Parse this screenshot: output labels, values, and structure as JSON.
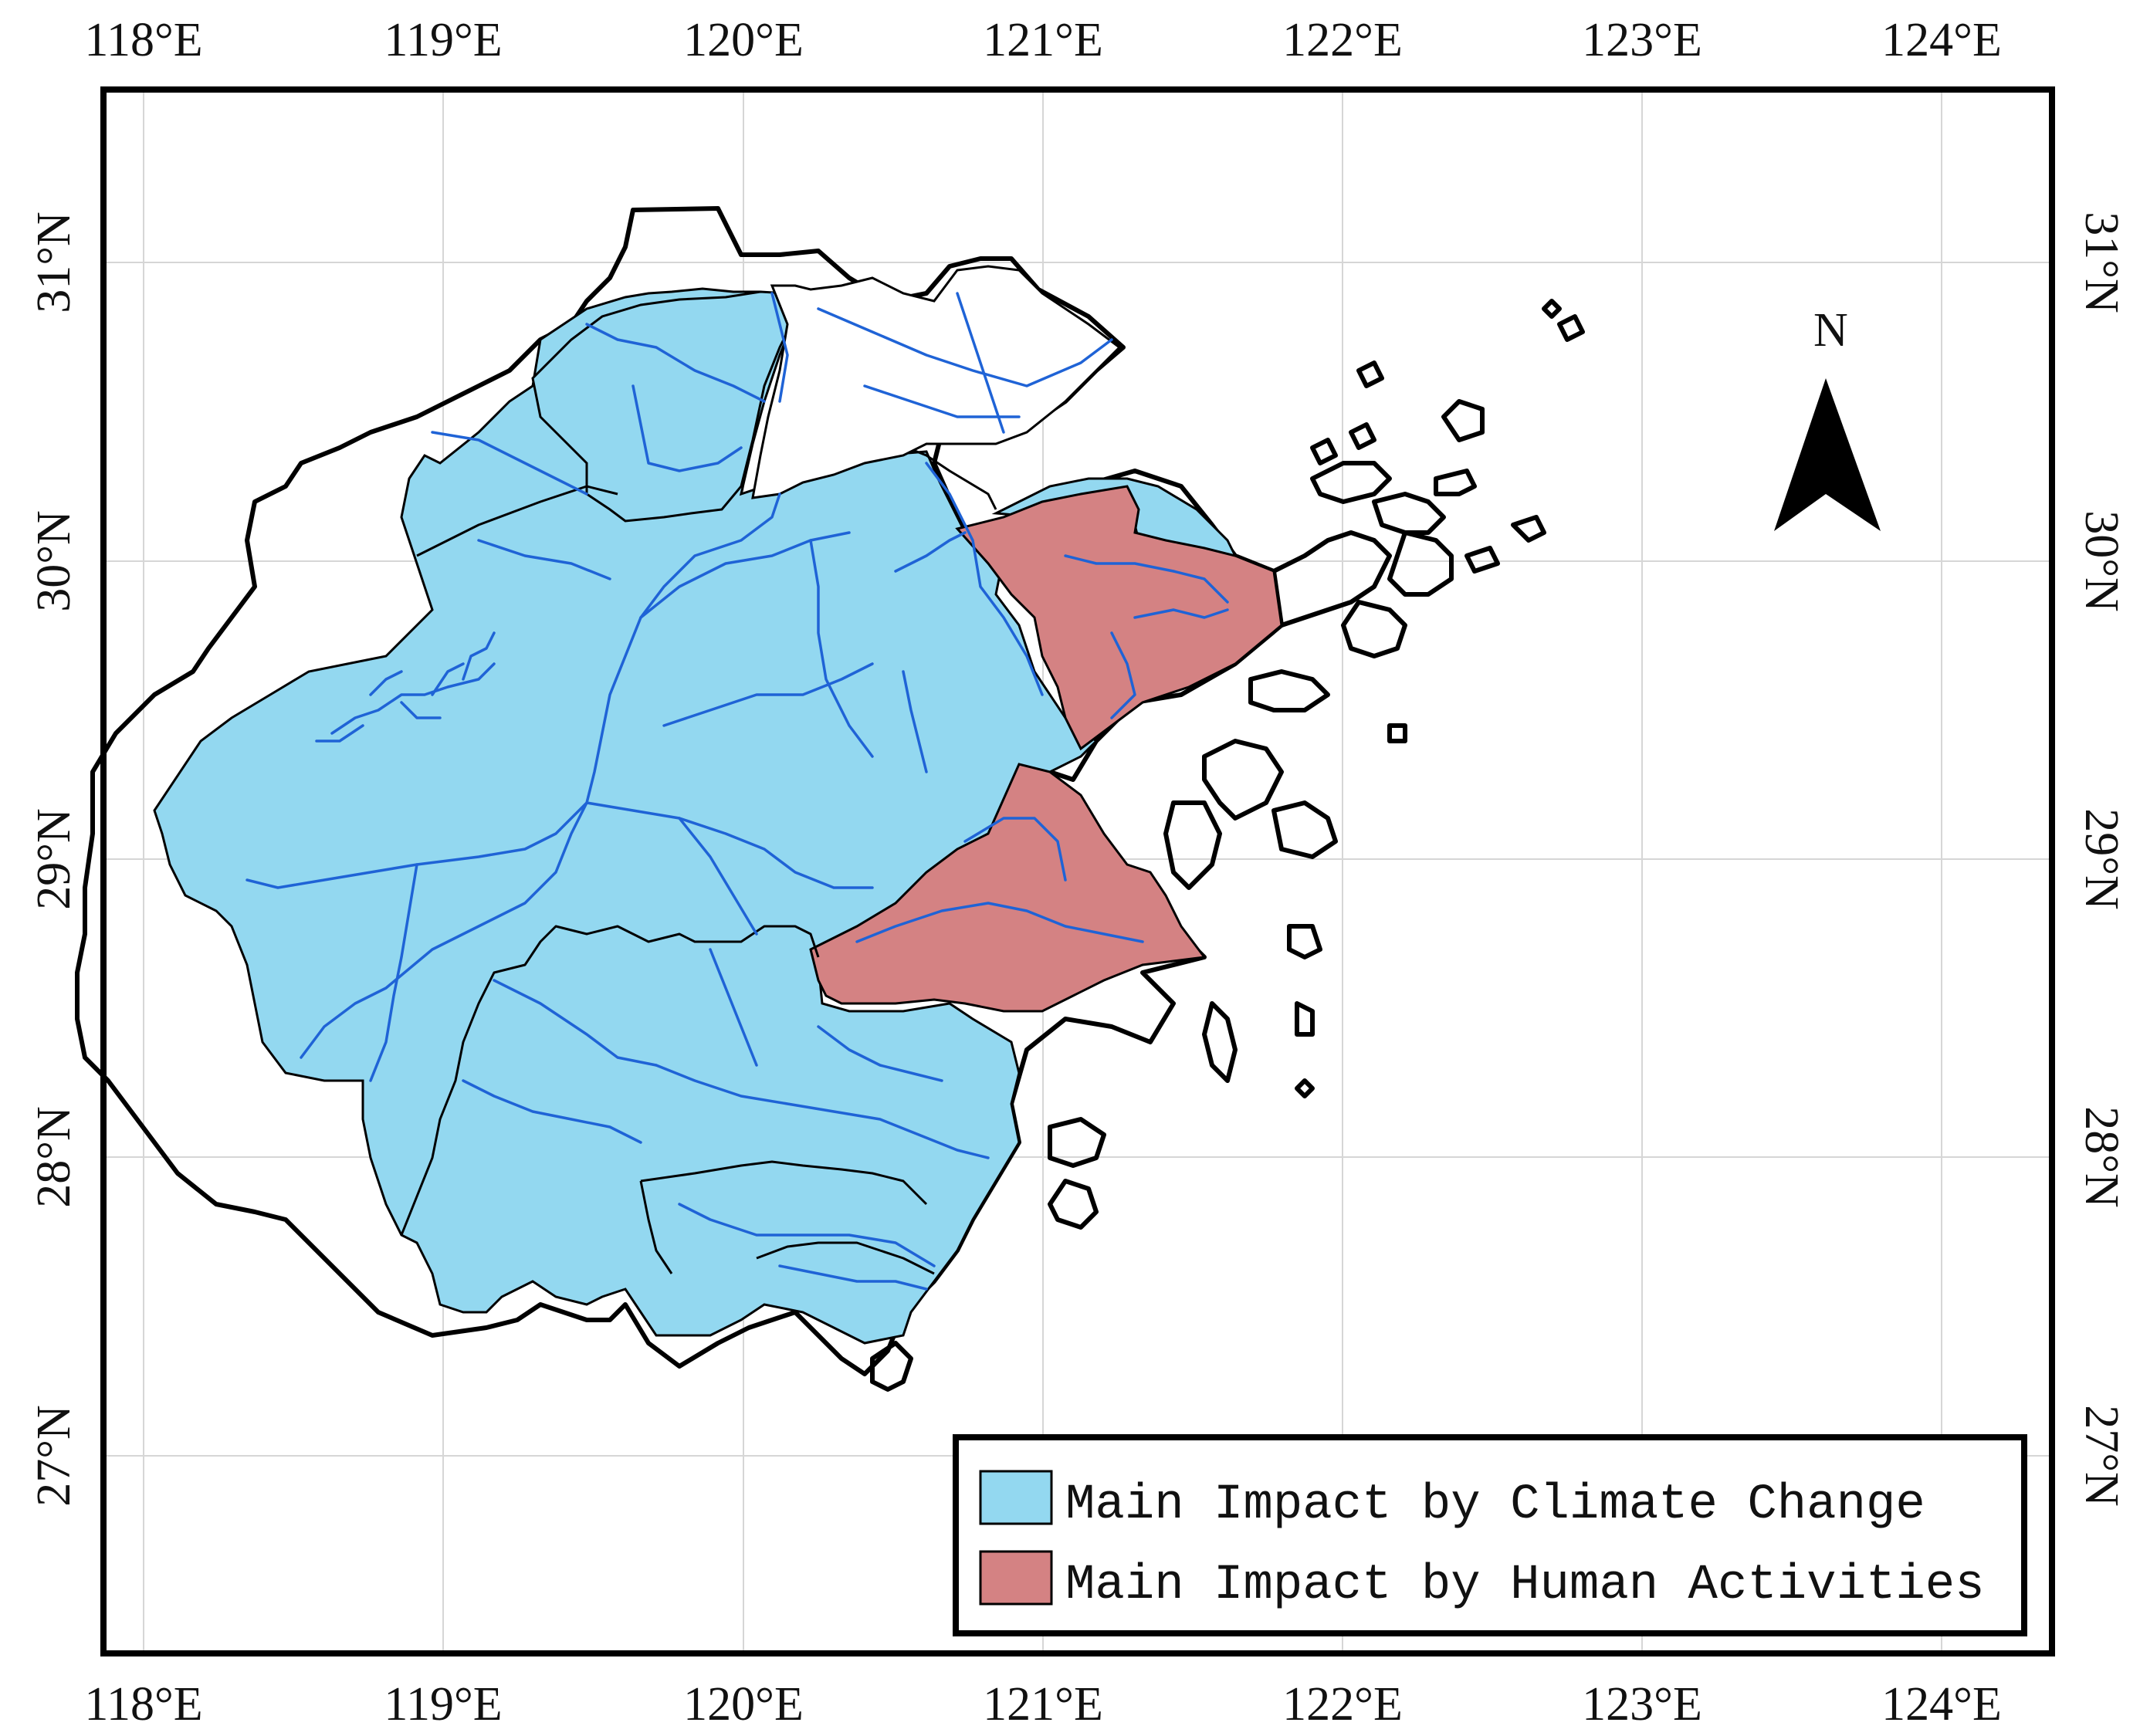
{
  "map": {
    "longitude_ticks": [
      "118°E",
      "119°E",
      "120°E",
      "121°E",
      "122°E",
      "123°E",
      "124°E"
    ],
    "latitude_ticks": [
      "31°N",
      "30°N",
      "29°N",
      "28°N",
      "27°N"
    ],
    "north_arrow_label": "N",
    "legend": [
      {
        "label": "Main Impact by Climate Change",
        "color": "#93d8f0"
      },
      {
        "label": "Main Impact by Human Activities",
        "color": "#d48283"
      }
    ],
    "colors": {
      "climate_change": "#93d8f0",
      "human_activities": "#d48283",
      "river": "#1f63d6",
      "unclassified": "#ffffff"
    }
  }
}
